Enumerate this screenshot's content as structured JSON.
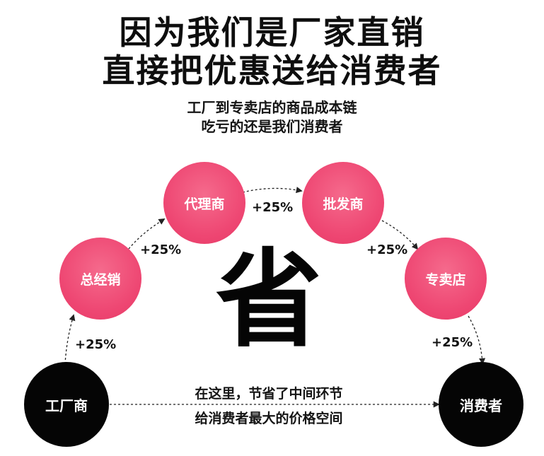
{
  "header": {
    "title_line1": "因为我们是厂家直销",
    "title_line2": "直接把优惠送给消费者",
    "subtitle_line1": "工厂到专卖店的商品成本链",
    "subtitle_line2": "吃亏的还是我们消费者"
  },
  "nodes": {
    "factory": "工厂商",
    "general_distributor": "总经销",
    "agent": "代理商",
    "wholesaler": "批发商",
    "store": "专卖店",
    "consumer": "消费者"
  },
  "markups": {
    "factory_to_distributor": "+25%",
    "distributor_to_agent": "+25%",
    "agent_to_wholesaler": "+25%",
    "wholesaler_to_store": "+25%",
    "store_to_consumer": "+25%"
  },
  "center": {
    "big_char": "省",
    "note_line1": "在这里，节省了中间环节",
    "note_line2": "给消费者最大的价格空间"
  },
  "colors": {
    "pink_node": "#ee4672",
    "black_node": "#050505",
    "arrow": "#222222"
  }
}
